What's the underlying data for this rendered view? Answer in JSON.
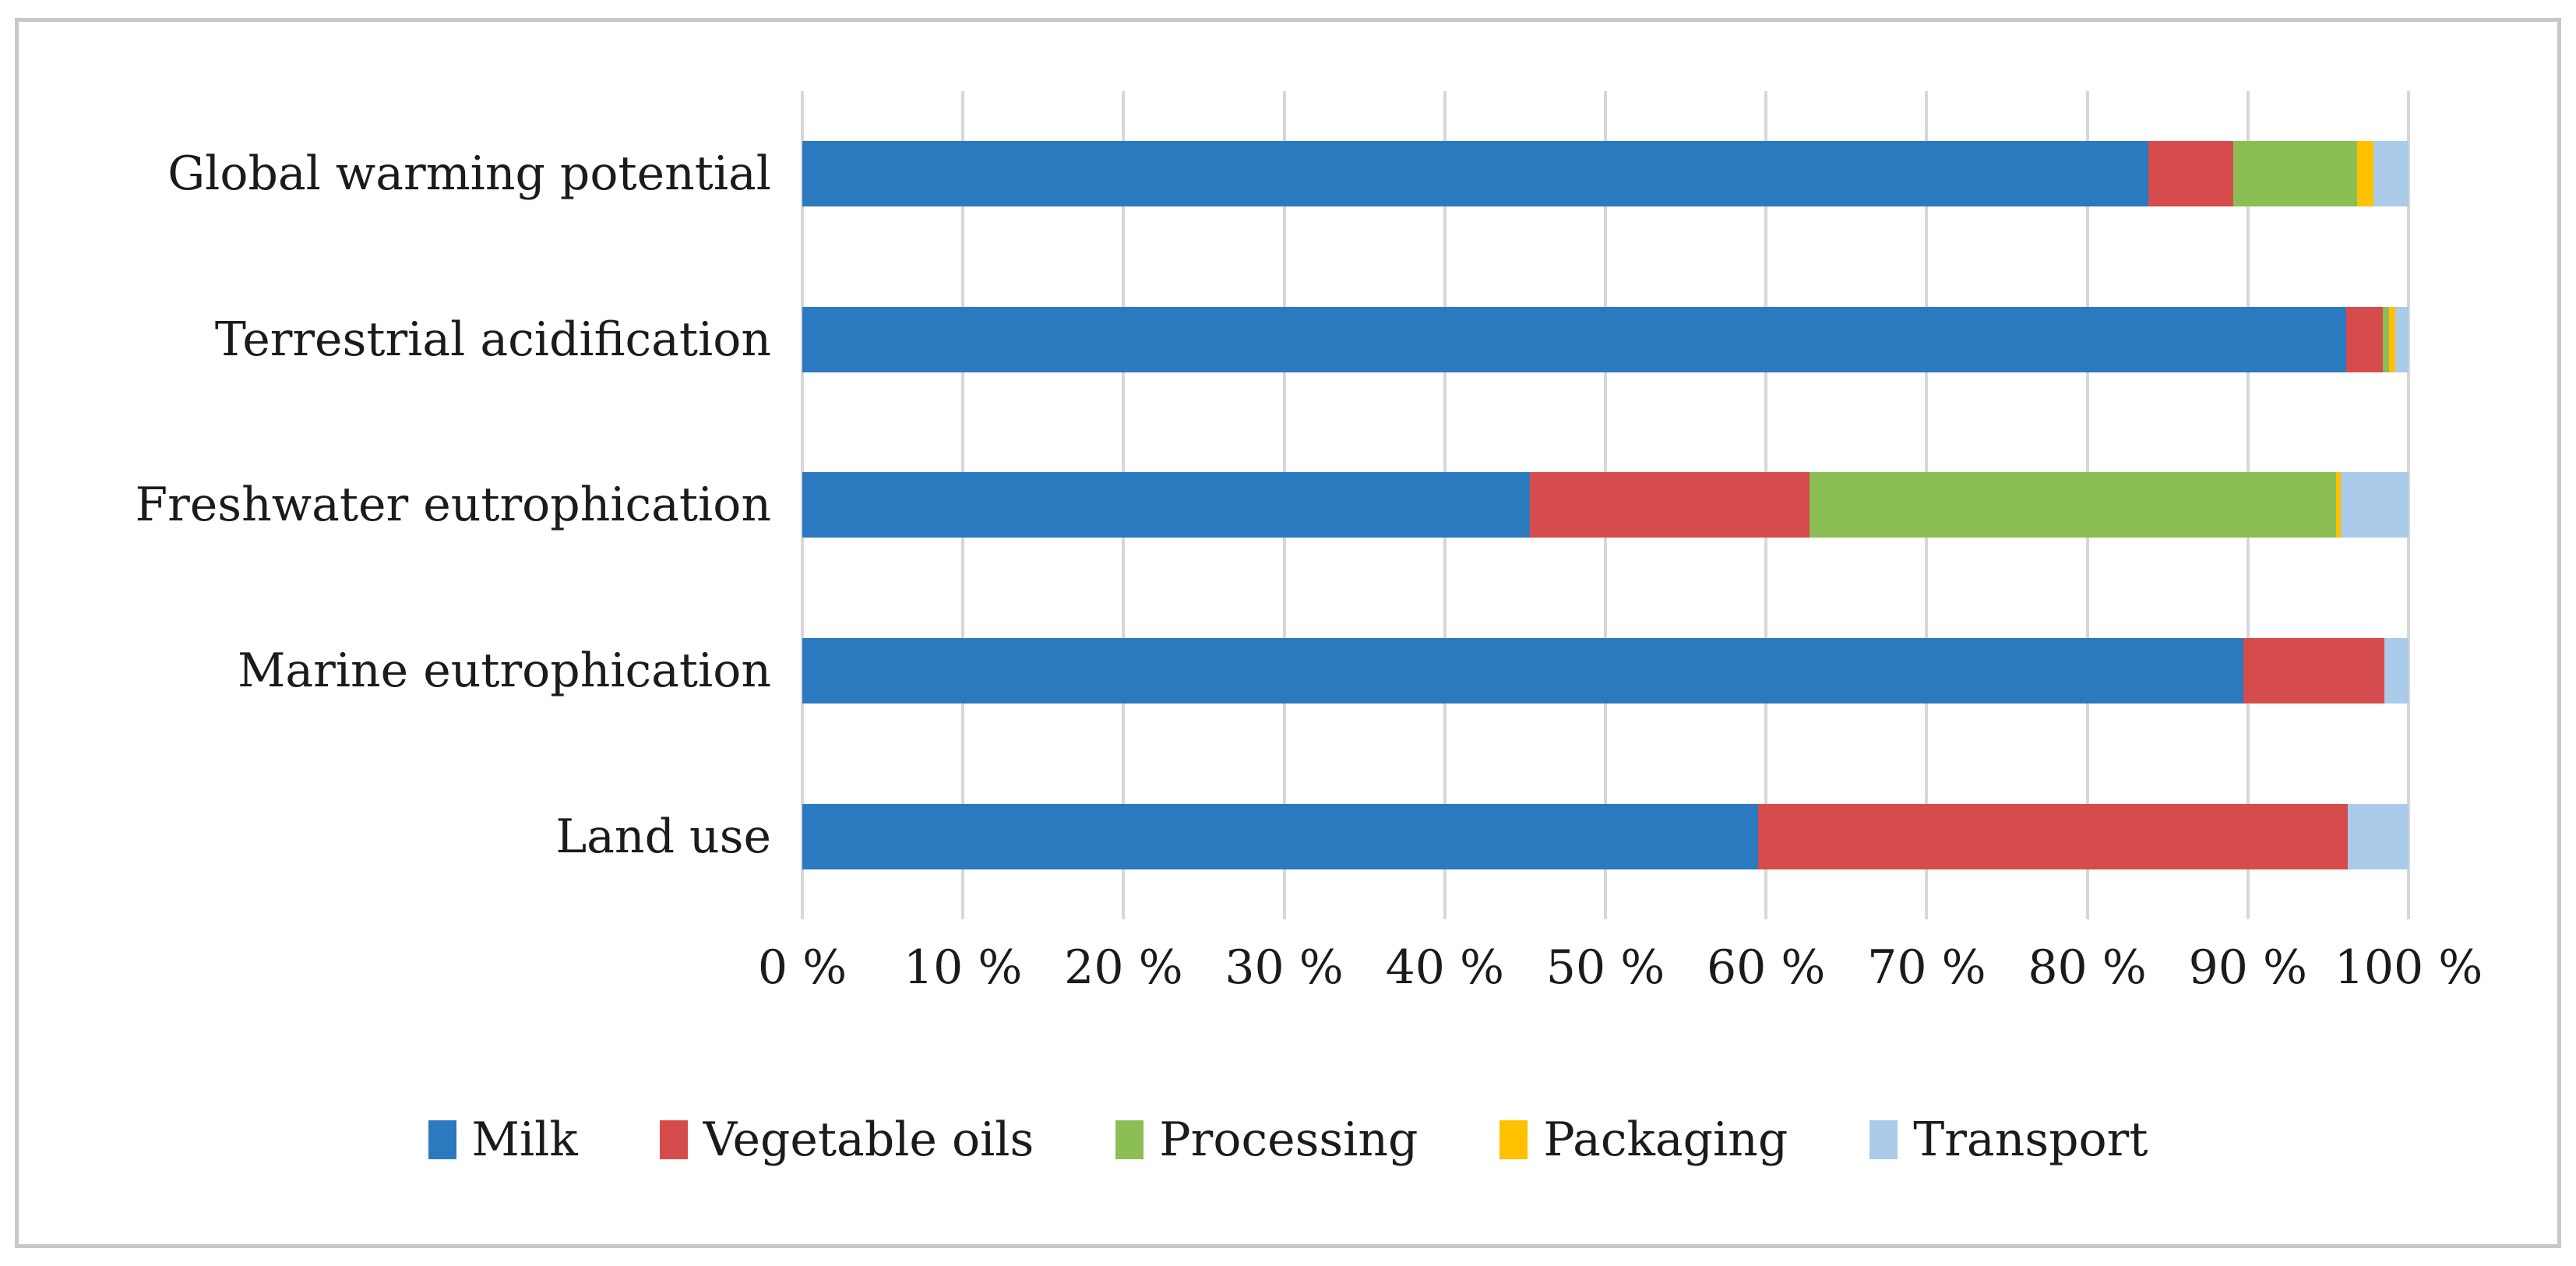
{
  "chart_data": {
    "type": "bar",
    "orientation": "horizontal",
    "stacked": true,
    "unit": "percent",
    "title": "",
    "xlabel": "",
    "ylabel": "",
    "grid": true,
    "legend_position": "bottom",
    "categories": [
      "Global warming potential",
      "Terrestrial acidification",
      "Freshwater eutrophication",
      "Marine eutrophication",
      "Land use"
    ],
    "series": [
      {
        "name": "Milk",
        "color": "#2b79be",
        "values": [
          83.8,
          96.1,
          45.3,
          89.7,
          59.5
        ]
      },
      {
        "name": "Vegetable oils",
        "color": "#d64c4c",
        "values": [
          5.3,
          2.3,
          17.4,
          8.8,
          36.7
        ]
      },
      {
        "name": "Processing",
        "color": "#8bbe55",
        "values": [
          7.7,
          0.4,
          32.8,
          0,
          0
        ]
      },
      {
        "name": "Packaging",
        "color": "#ffc000",
        "values": [
          1.0,
          0.4,
          0.3,
          0,
          0
        ]
      },
      {
        "name": "Transport",
        "color": "#aacbea",
        "values": [
          2.2,
          0.8,
          4.2,
          1.5,
          3.8
        ]
      }
    ],
    "x_axis": {
      "min": 0,
      "max": 100,
      "tick_step": 10,
      "ticks": [
        "0 %",
        "10 %",
        "20 %",
        "30 %",
        "40 %",
        "50 %",
        "60 %",
        "70 %",
        "80 %",
        "90 %",
        "100 %"
      ]
    }
  },
  "colors": {
    "background": "#ffffff",
    "frame_border": "#c8c8c8",
    "gridline": "#d7d7d7",
    "text": "#1b1b1b"
  }
}
